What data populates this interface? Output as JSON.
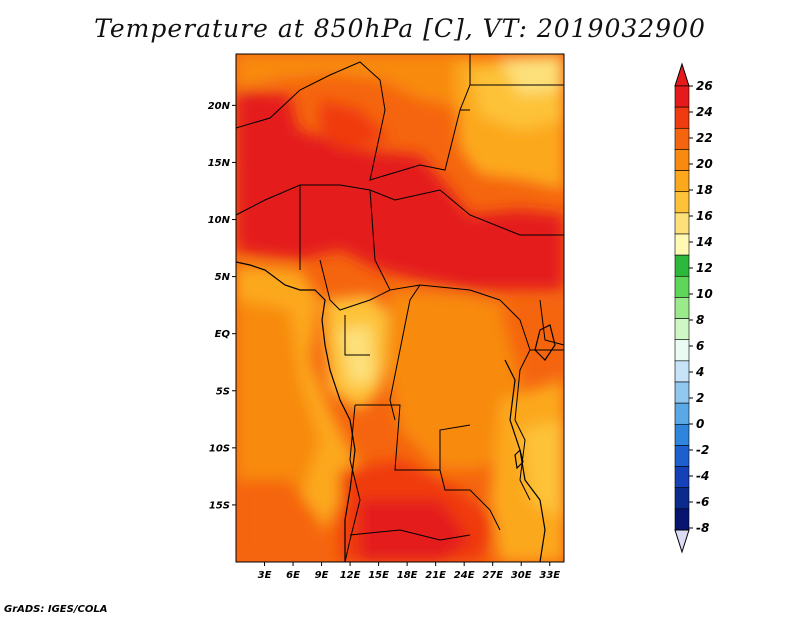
{
  "title": "Temperature at 850hPa [C], VT: 2019032900",
  "credit": "GrADS: IGES/COLA",
  "map": {
    "lon_range": [
      0,
      34.5
    ],
    "lat_range": [
      -20,
      24.5
    ],
    "x_ticks": [
      "3E",
      "6E",
      "9E",
      "12E",
      "15E",
      "18E",
      "21E",
      "24E",
      "27E",
      "30E",
      "33E"
    ],
    "y_ticks": [
      "20N",
      "15N",
      "10N",
      "5N",
      "EQ",
      "5S",
      "10S",
      "15S"
    ]
  },
  "colorbar": {
    "levels": [
      "26",
      "24",
      "22",
      "20",
      "18",
      "16",
      "14",
      "12",
      "10",
      "8",
      "6",
      "4",
      "2",
      "0",
      "-2",
      "-4",
      "-6",
      "-8"
    ],
    "colors": [
      "#e41a1c",
      "#f03b10",
      "#f5650f",
      "#f88a10",
      "#fca81c",
      "#fdc238",
      "#fde07a",
      "#fff9b3",
      "#2cb83a",
      "#5fd65a",
      "#9aea8c",
      "#cff7c5",
      "#e9fbf2",
      "#c6e3f7",
      "#90c8f0",
      "#5aa9e6",
      "#2f84dc",
      "#1e5fd0",
      "#1440b8",
      "#0a2a8c",
      "#061570"
    ],
    "over_color": "#e41a1c",
    "under_color": "#dcdcf5"
  }
}
